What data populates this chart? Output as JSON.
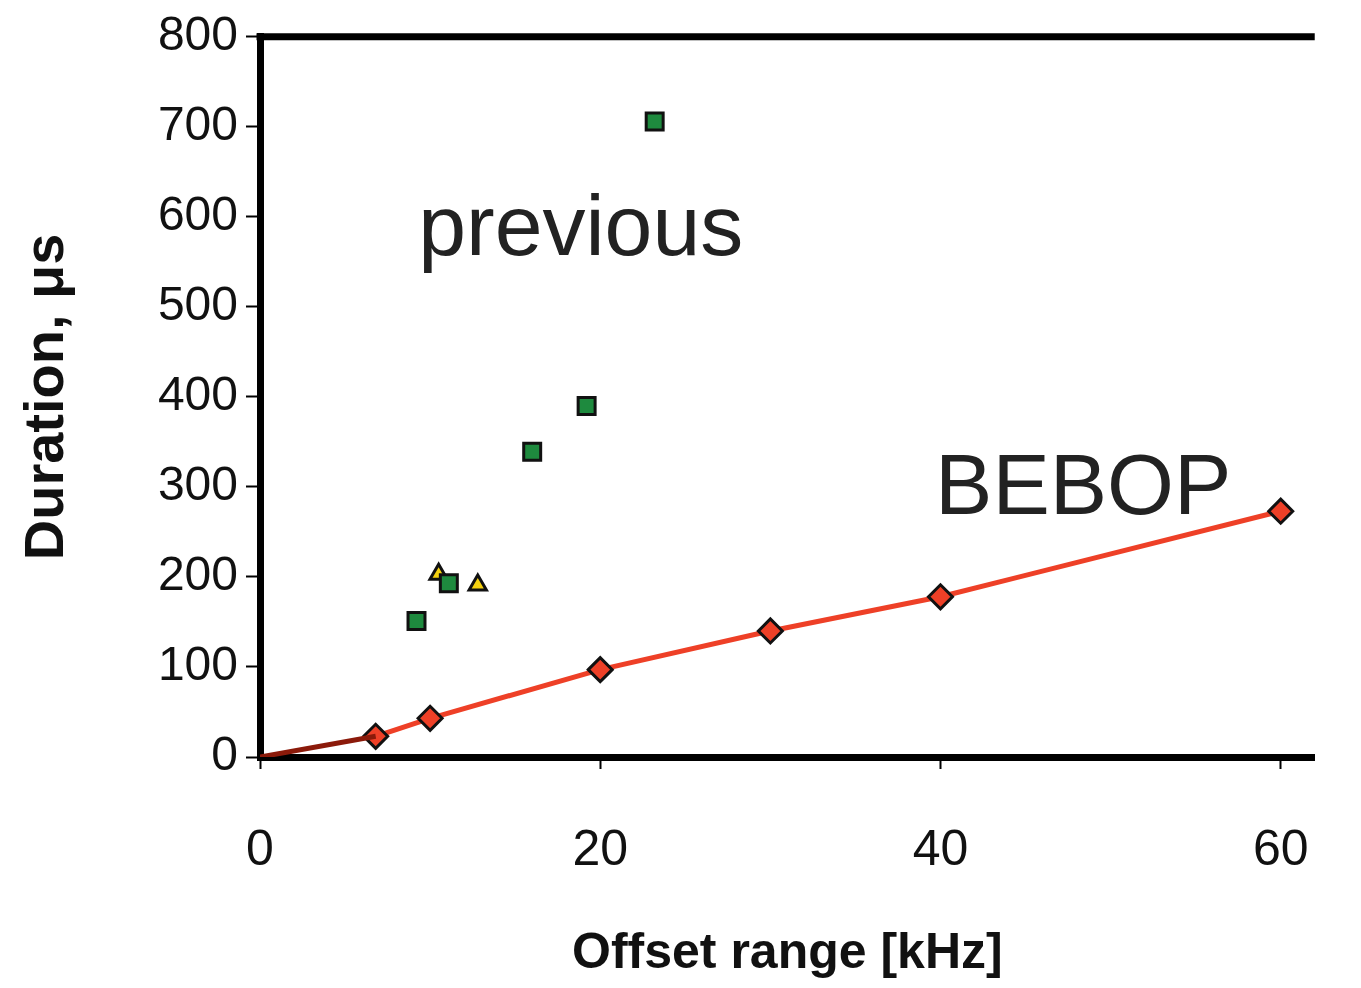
{
  "chart_data": {
    "type": "scatter",
    "xlabel": "Offset range [kHz]",
    "ylabel": "Duration, μs",
    "xlim": [
      0,
      62
    ],
    "ylim": [
      0,
      800
    ],
    "xticks": [
      0,
      20,
      40,
      60
    ],
    "yticks": [
      0,
      100,
      200,
      300,
      400,
      500,
      600,
      700,
      800
    ],
    "grid": false,
    "legend": false,
    "annotations": [
      "previous",
      "BEBOP"
    ],
    "series": [
      {
        "type": "scatter",
        "marker": "square",
        "color": "#1e8a3e",
        "x": [
          9.2,
          11.1,
          16.0,
          19.2,
          23.2
        ],
        "values": [
          151,
          193,
          339,
          390,
          706
        ]
      },
      {
        "type": "scatter",
        "marker": "triangle",
        "color": "#f5d10f",
        "x": [
          10.5,
          12.8
        ],
        "values": [
          203,
          191
        ]
      },
      {
        "type": "line",
        "marker": "none",
        "color": "#8b1a0a",
        "x": [
          0,
          6.8
        ],
        "values": [
          0,
          23
        ]
      },
      {
        "type": "line",
        "marker": "diamond",
        "color": "#ee4027",
        "x": [
          6.8,
          10,
          20,
          30,
          40,
          60
        ],
        "values": [
          23,
          43,
          97,
          140,
          178,
          273
        ]
      }
    ]
  }
}
